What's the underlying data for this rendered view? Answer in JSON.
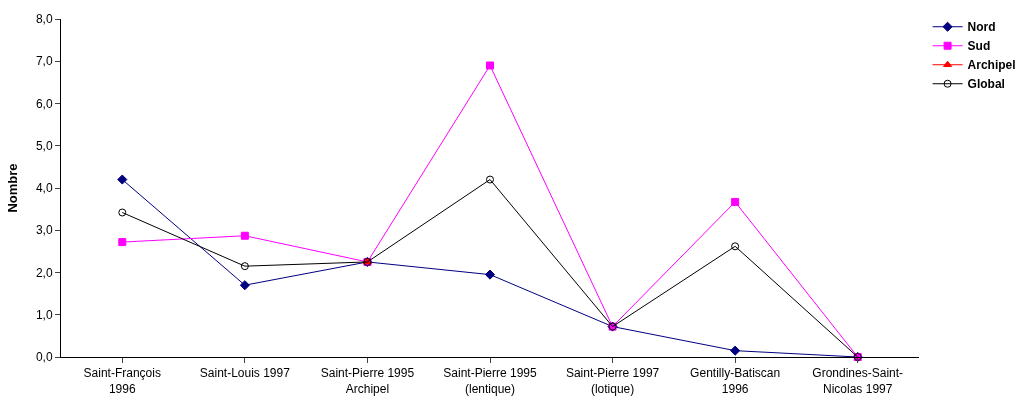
{
  "chart_data": {
    "type": "line",
    "ylabel": "Nombre",
    "categories": [
      "Saint-François 1996",
      "Saint-Louis 1997",
      "Saint-Pierre 1995 Archipel",
      "Saint-Pierre 1995 (lentique)",
      "Saint-Pierre 1997 (lotique)",
      "Gentilly-Batiscan 1996",
      "Grondines-Saint-Nicolas 1997"
    ],
    "series": [
      {
        "name": "Nord",
        "color": "#000080",
        "marker": "diamond",
        "values": [
          4.2,
          1.7,
          2.25,
          1.95,
          0.72,
          0.15,
          0.0
        ]
      },
      {
        "name": "Sud",
        "color": "#ff00ff",
        "marker": "square",
        "values": [
          2.72,
          2.87,
          2.25,
          6.9,
          0.72,
          3.67,
          0.0
        ]
      },
      {
        "name": "Archipel",
        "color": "#ff0000",
        "marker": "triangle",
        "values": [
          null,
          null,
          2.25,
          null,
          null,
          null,
          null
        ]
      },
      {
        "name": "Global",
        "color": "#000000",
        "marker": "circle",
        "values": [
          3.42,
          2.15,
          2.25,
          4.2,
          0.72,
          2.62,
          0.0
        ]
      }
    ],
    "ylim": [
      0,
      8
    ],
    "yticks": [
      {
        "value": 0,
        "label": "0,0"
      },
      {
        "value": 1,
        "label": "1,0"
      },
      {
        "value": 2,
        "label": "2,0"
      },
      {
        "value": 3,
        "label": "3,0"
      },
      {
        "value": 4,
        "label": "4,0"
      },
      {
        "value": 5,
        "label": "5,0"
      },
      {
        "value": 6,
        "label": "6,0"
      },
      {
        "value": 7,
        "label": "7,0"
      },
      {
        "value": 8,
        "label": "8,0"
      }
    ],
    "grid": false,
    "legend": "top right"
  }
}
